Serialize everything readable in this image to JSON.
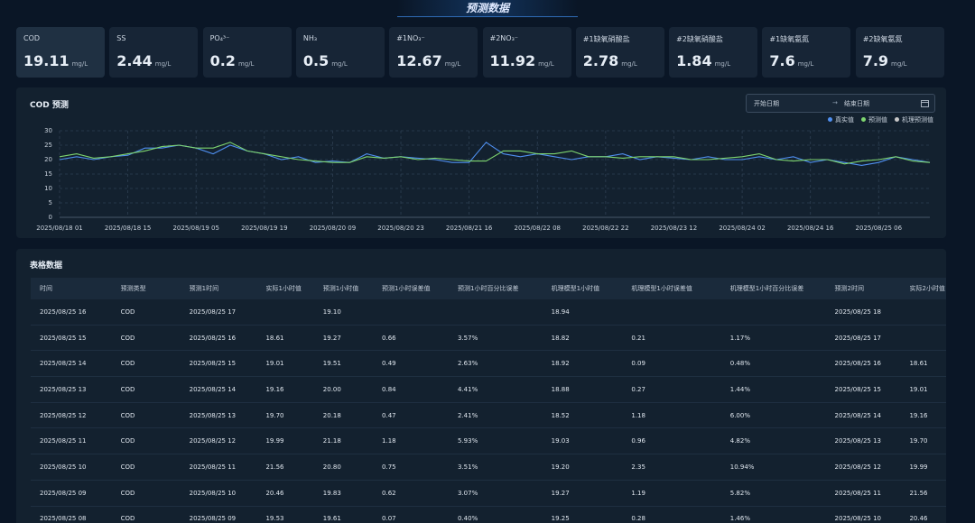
{
  "header": {
    "title": "预测数据"
  },
  "metrics": [
    {
      "label": "COD",
      "value": "19.11",
      "unit": "mg/L"
    },
    {
      "label": "SS",
      "value": "2.44",
      "unit": "mg/L"
    },
    {
      "label": "PO₄³⁻",
      "value": "0.2",
      "unit": "mg/L"
    },
    {
      "label": "NH₃",
      "value": "0.5",
      "unit": "mg/L"
    },
    {
      "label": "#1NO₃⁻",
      "value": "12.67",
      "unit": "mg/L"
    },
    {
      "label": "#2NO₃⁻",
      "value": "11.92",
      "unit": "mg/L"
    },
    {
      "label": "#1缺氧硝酸盐",
      "value": "2.78",
      "unit": "mg/L"
    },
    {
      "label": "#2缺氧硝酸盐",
      "value": "1.84",
      "unit": "mg/L"
    },
    {
      "label": "#1缺氧氨氮",
      "value": "7.6",
      "unit": "mg/L"
    },
    {
      "label": "#2缺氧氨氮",
      "value": "7.9",
      "unit": "mg/L"
    }
  ],
  "date_range": {
    "start": "开始日期",
    "end": "结束日期"
  },
  "chart_data": {
    "type": "line",
    "title": "COD 预测",
    "grid": true,
    "categories": [
      "2025/08/18 01",
      null,
      null,
      null,
      "2025/08/18 15",
      null,
      null,
      null,
      "2025/08/19 05",
      null,
      null,
      null,
      "2025/08/19 19",
      null,
      null,
      null,
      "2025/08/20 09",
      null,
      null,
      null,
      "2025/08/20 23",
      null,
      null,
      null,
      "2025/08/21 16",
      null,
      null,
      null,
      "2025/08/22 08",
      null,
      null,
      null,
      "2025/08/22 22",
      null,
      null,
      null,
      "2025/08/23 12",
      null,
      null,
      null,
      "2025/08/24 02",
      null,
      null,
      null,
      "2025/08/24 16",
      null,
      null,
      null,
      "2025/08/25 06",
      null,
      null,
      null
    ],
    "ylim": [
      0,
      30
    ],
    "yticks": [
      0,
      5,
      10,
      15,
      20,
      25,
      30
    ],
    "series": [
      {
        "name": "真实值",
        "color": "#4f8ff0",
        "values": [
          20,
          21,
          20,
          21,
          21.5,
          24,
          24,
          25,
          24,
          22,
          25,
          23,
          22,
          20,
          21,
          19,
          19.5,
          19,
          22,
          20.5,
          21,
          20.5,
          20,
          19,
          19,
          26,
          22,
          21,
          22,
          21,
          20,
          21,
          21,
          22,
          20,
          21,
          20.5,
          20,
          21,
          20,
          20,
          21,
          20,
          21,
          19,
          20,
          19,
          18,
          19,
          21,
          20,
          19
        ]
      },
      {
        "name": "预测值",
        "color": "#7ed56f",
        "values": [
          21,
          22,
          20.5,
          21,
          22,
          23,
          24.5,
          25,
          24,
          24,
          26,
          23,
          22,
          21,
          20,
          19.5,
          19,
          19,
          21,
          20.5,
          21,
          20,
          20.5,
          20,
          19.5,
          19.5,
          23,
          23,
          22,
          22,
          23,
          21,
          21,
          20.5,
          21,
          21,
          21,
          20,
          20,
          20.5,
          21,
          22,
          20,
          19.5,
          20,
          20,
          18.5,
          19.5,
          20,
          21,
          19.5,
          19
        ]
      },
      {
        "name": "机理预测值",
        "color": "#c8c8c8",
        "values": [
          null,
          null,
          null,
          null,
          null,
          null,
          null,
          null,
          null,
          null,
          null,
          null,
          null,
          null,
          null,
          null,
          null,
          null,
          null,
          null,
          null,
          null,
          null,
          null,
          null,
          null,
          null,
          null,
          null,
          null,
          null,
          null,
          null,
          null,
          null,
          null,
          null,
          null,
          null,
          null,
          null,
          null,
          null,
          null,
          null,
          null,
          null,
          null,
          null,
          null,
          null,
          null
        ]
      }
    ]
  },
  "table": {
    "title": "表格数据",
    "columns": [
      "时间",
      "预测类型",
      "预测1时间",
      "实际1小时值",
      "预测1小时值",
      "预测1小时误差值",
      "预测1小时百分比误差",
      "机理模型1小时值",
      "机理模型1小时误差值",
      "机理模型1小时百分比误差",
      "预测2时间",
      "实际2小时值"
    ],
    "rows": [
      [
        "2025/08/25 16",
        "COD",
        "2025/08/25 17",
        null,
        "19.10",
        null,
        null,
        "18.94",
        null,
        null,
        "2025/08/25 18",
        null
      ],
      [
        "2025/08/25 15",
        "COD",
        "2025/08/25 16",
        "18.61",
        "19.27",
        "0.66",
        "3.57%",
        "18.82",
        "0.21",
        "1.17%",
        "2025/08/25 17",
        null
      ],
      [
        "2025/08/25 14",
        "COD",
        "2025/08/25 15",
        "19.01",
        "19.51",
        "0.49",
        "2.63%",
        "18.92",
        "0.09",
        "0.48%",
        "2025/08/25 16",
        "18.61"
      ],
      [
        "2025/08/25 13",
        "COD",
        "2025/08/25 14",
        "19.16",
        "20.00",
        "0.84",
        "4.41%",
        "18.88",
        "0.27",
        "1.44%",
        "2025/08/25 15",
        "19.01"
      ],
      [
        "2025/08/25 12",
        "COD",
        "2025/08/25 13",
        "19.70",
        "20.18",
        "0.47",
        "2.41%",
        "18.52",
        "1.18",
        "6.00%",
        "2025/08/25 14",
        "19.16"
      ],
      [
        "2025/08/25 11",
        "COD",
        "2025/08/25 12",
        "19.99",
        "21.18",
        "1.18",
        "5.93%",
        "19.03",
        "0.96",
        "4.82%",
        "2025/08/25 13",
        "19.70"
      ],
      [
        "2025/08/25 10",
        "COD",
        "2025/08/25 11",
        "21.56",
        "20.80",
        "0.75",
        "3.51%",
        "19.20",
        "2.35",
        "10.94%",
        "2025/08/25 12",
        "19.99"
      ],
      [
        "2025/08/25 09",
        "COD",
        "2025/08/25 10",
        "20.46",
        "19.83",
        "0.62",
        "3.07%",
        "19.27",
        "1.19",
        "5.82%",
        "2025/08/25 11",
        "21.56"
      ],
      [
        "2025/08/25 08",
        "COD",
        "2025/08/25 09",
        "19.53",
        "19.61",
        "0.07",
        "0.40%",
        "19.25",
        "0.28",
        "1.46%",
        "2025/08/25 10",
        "20.46"
      ]
    ]
  }
}
